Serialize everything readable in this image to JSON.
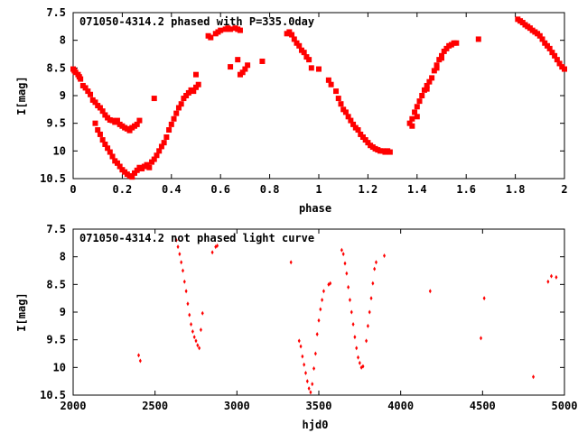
{
  "chart_data": [
    {
      "type": "scatter",
      "title": "071050-4314.2 phased with P=335.0day",
      "xlabel": "phase",
      "ylabel": "I[mag]",
      "xlim": [
        0,
        2
      ],
      "ylim": [
        10.5,
        7.5
      ],
      "y_inverted": true,
      "xticks": [
        0,
        0.2,
        0.4,
        0.6,
        0.8,
        1,
        1.2,
        1.4,
        1.6,
        1.8,
        2
      ],
      "xtick_labels": [
        "0",
        "0.2",
        "0.4",
        "0.6",
        "0.8",
        "1",
        "1.2",
        "1.4",
        "1.6",
        "1.8",
        "2"
      ],
      "yticks": [
        7.5,
        8,
        8.5,
        9,
        9.5,
        10,
        10.5
      ],
      "ytick_labels": [
        "7.5",
        "8",
        "8.5",
        "9",
        "9.5",
        "10",
        "10.5"
      ],
      "grid": false,
      "marker_color": "#ff0000",
      "marker": "filled-square",
      "points": [
        [
          0.0,
          8.52
        ],
        [
          0.005,
          8.55
        ],
        [
          0.01,
          8.58
        ],
        [
          0.02,
          8.62
        ],
        [
          0.025,
          8.66
        ],
        [
          0.03,
          8.7
        ],
        [
          0.04,
          8.82
        ],
        [
          0.05,
          8.86
        ],
        [
          0.06,
          8.92
        ],
        [
          0.07,
          8.98
        ],
        [
          0.08,
          9.08
        ],
        [
          0.09,
          9.12
        ],
        [
          0.1,
          9.18
        ],
        [
          0.11,
          9.22
        ],
        [
          0.12,
          9.28
        ],
        [
          0.13,
          9.35
        ],
        [
          0.14,
          9.4
        ],
        [
          0.15,
          9.44
        ],
        [
          0.16,
          9.45
        ],
        [
          0.17,
          9.48
        ],
        [
          0.18,
          9.45
        ],
        [
          0.19,
          9.52
        ],
        [
          0.2,
          9.55
        ],
        [
          0.21,
          9.58
        ],
        [
          0.22,
          9.6
        ],
        [
          0.23,
          9.63
        ],
        [
          0.24,
          9.58
        ],
        [
          0.25,
          9.55
        ],
        [
          0.26,
          9.52
        ],
        [
          0.27,
          9.45
        ],
        [
          0.09,
          9.5
        ],
        [
          0.1,
          9.62
        ],
        [
          0.11,
          9.7
        ],
        [
          0.12,
          9.8
        ],
        [
          0.13,
          9.88
        ],
        [
          0.14,
          9.95
        ],
        [
          0.15,
          10.02
        ],
        [
          0.16,
          10.1
        ],
        [
          0.17,
          10.18
        ],
        [
          0.18,
          10.22
        ],
        [
          0.19,
          10.28
        ],
        [
          0.2,
          10.34
        ],
        [
          0.21,
          10.38
        ],
        [
          0.22,
          10.42
        ],
        [
          0.23,
          10.45
        ],
        [
          0.24,
          10.47
        ],
        [
          0.25,
          10.4
        ],
        [
          0.26,
          10.35
        ],
        [
          0.27,
          10.3
        ],
        [
          0.28,
          10.32
        ],
        [
          0.29,
          10.28
        ],
        [
          0.3,
          10.25
        ],
        [
          0.31,
          10.3
        ],
        [
          0.32,
          10.2
        ],
        [
          0.33,
          10.15
        ],
        [
          0.34,
          10.08
        ],
        [
          0.35,
          10.0
        ],
        [
          0.36,
          9.92
        ],
        [
          0.37,
          9.85
        ],
        [
          0.38,
          9.75
        ],
        [
          0.39,
          9.62
        ],
        [
          0.4,
          9.52
        ],
        [
          0.41,
          9.42
        ],
        [
          0.42,
          9.32
        ],
        [
          0.43,
          9.22
        ],
        [
          0.44,
          9.15
        ],
        [
          0.45,
          9.05
        ],
        [
          0.46,
          9.0
        ],
        [
          0.47,
          8.95
        ],
        [
          0.48,
          8.9
        ],
        [
          0.49,
          8.92
        ],
        [
          0.5,
          8.85
        ],
        [
          0.51,
          8.8
        ],
        [
          0.33,
          9.05
        ],
        [
          0.5,
          8.62
        ],
        [
          0.55,
          7.92
        ],
        [
          0.56,
          7.95
        ],
        [
          0.58,
          7.88
        ],
        [
          0.59,
          7.85
        ],
        [
          0.6,
          7.82
        ],
        [
          0.62,
          7.8
        ],
        [
          0.63,
          7.78
        ],
        [
          0.64,
          7.8
        ],
        [
          0.66,
          7.78
        ],
        [
          0.67,
          7.8
        ],
        [
          0.68,
          7.82
        ],
        [
          0.64,
          8.48
        ],
        [
          0.67,
          8.35
        ],
        [
          0.68,
          8.62
        ],
        [
          0.69,
          8.58
        ],
        [
          0.7,
          8.52
        ],
        [
          0.71,
          8.45
        ],
        [
          0.77,
          8.38
        ],
        [
          0.87,
          7.88
        ],
        [
          0.88,
          7.85
        ],
        [
          0.89,
          7.9
        ],
        [
          0.9,
          7.98
        ],
        [
          0.91,
          8.05
        ],
        [
          0.92,
          8.1
        ],
        [
          0.93,
          8.18
        ],
        [
          0.94,
          8.22
        ],
        [
          0.95,
          8.3
        ],
        [
          0.96,
          8.35
        ],
        [
          0.97,
          8.5
        ],
        [
          1.0,
          8.52
        ],
        [
          1.04,
          8.72
        ],
        [
          1.05,
          8.8
        ],
        [
          1.07,
          8.92
        ],
        [
          1.08,
          9.05
        ],
        [
          1.09,
          9.15
        ],
        [
          1.1,
          9.25
        ],
        [
          1.11,
          9.3
        ],
        [
          1.12,
          9.38
        ],
        [
          1.13,
          9.45
        ],
        [
          1.14,
          9.52
        ],
        [
          1.15,
          9.58
        ],
        [
          1.16,
          9.62
        ],
        [
          1.17,
          9.7
        ],
        [
          1.18,
          9.75
        ],
        [
          1.19,
          9.8
        ],
        [
          1.2,
          9.85
        ],
        [
          1.21,
          9.9
        ],
        [
          1.22,
          9.93
        ],
        [
          1.23,
          9.96
        ],
        [
          1.24,
          9.98
        ],
        [
          1.25,
          10.0
        ],
        [
          1.26,
          10.0
        ],
        [
          1.27,
          10.02
        ],
        [
          1.28,
          10.0
        ],
        [
          1.29,
          10.02
        ],
        [
          1.37,
          9.5
        ],
        [
          1.38,
          9.42
        ],
        [
          1.39,
          9.3
        ],
        [
          1.4,
          9.2
        ],
        [
          1.41,
          9.1
        ],
        [
          1.42,
          9.0
        ],
        [
          1.43,
          8.9
        ],
        [
          1.44,
          8.82
        ],
        [
          1.45,
          8.75
        ],
        [
          1.46,
          8.68
        ],
        [
          1.47,
          8.55
        ],
        [
          1.48,
          8.45
        ],
        [
          1.49,
          8.35
        ],
        [
          1.5,
          8.28
        ],
        [
          1.51,
          8.2
        ],
        [
          1.52,
          8.15
        ],
        [
          1.53,
          8.1
        ],
        [
          1.54,
          8.08
        ],
        [
          1.55,
          8.05
        ],
        [
          1.56,
          8.05
        ],
        [
          1.38,
          9.55
        ],
        [
          1.4,
          9.38
        ],
        [
          1.44,
          8.88
        ],
        [
          1.48,
          8.5
        ],
        [
          1.5,
          8.32
        ],
        [
          1.65,
          7.98
        ],
        [
          1.81,
          7.62
        ],
        [
          1.82,
          7.65
        ],
        [
          1.83,
          7.68
        ],
        [
          1.84,
          7.72
        ],
        [
          1.85,
          7.75
        ],
        [
          1.86,
          7.78
        ],
        [
          1.87,
          7.82
        ],
        [
          1.88,
          7.85
        ],
        [
          1.89,
          7.88
        ],
        [
          1.9,
          7.92
        ],
        [
          1.91,
          7.98
        ],
        [
          1.92,
          8.05
        ],
        [
          1.93,
          8.1
        ],
        [
          1.94,
          8.15
        ],
        [
          1.95,
          8.22
        ],
        [
          1.96,
          8.28
        ],
        [
          1.97,
          8.35
        ],
        [
          1.98,
          8.42
        ],
        [
          1.99,
          8.48
        ],
        [
          2.0,
          8.52
        ]
      ]
    },
    {
      "type": "scatter",
      "title": "071050-4314.2 not phased light curve",
      "xlabel": "hjd0",
      "ylabel": "I[mag]",
      "xlim": [
        2000,
        5000
      ],
      "ylim": [
        10.5,
        7.5
      ],
      "y_inverted": true,
      "xticks": [
        2000,
        2500,
        3000,
        3500,
        4000,
        4500,
        5000
      ],
      "xtick_labels": [
        "2000",
        "2500",
        "3000",
        "3500",
        "4000",
        "4500",
        "5000"
      ],
      "yticks": [
        7.5,
        8,
        8.5,
        9,
        9.5,
        10,
        10.5
      ],
      "ytick_labels": [
        "7.5",
        "8",
        "8.5",
        "9",
        "9.5",
        "10",
        "10.5"
      ],
      "grid": false,
      "marker_color": "#ff0000",
      "marker": "filled-diamond",
      "points": [
        [
          2400,
          9.78
        ],
        [
          2410,
          9.88
        ],
        [
          2630,
          7.7
        ],
        [
          2640,
          7.82
        ],
        [
          2650,
          7.95
        ],
        [
          2660,
          8.1
        ],
        [
          2670,
          8.25
        ],
        [
          2680,
          8.45
        ],
        [
          2690,
          8.62
        ],
        [
          2700,
          8.85
        ],
        [
          2710,
          9.05
        ],
        [
          2720,
          9.22
        ],
        [
          2730,
          9.35
        ],
        [
          2740,
          9.45
        ],
        [
          2750,
          9.52
        ],
        [
          2760,
          9.6
        ],
        [
          2770,
          9.65
        ],
        [
          2780,
          9.32
        ],
        [
          2790,
          9.02
        ],
        [
          2850,
          7.92
        ],
        [
          2870,
          7.82
        ],
        [
          2880,
          7.8
        ],
        [
          3330,
          8.1
        ],
        [
          3380,
          9.52
        ],
        [
          3390,
          9.62
        ],
        [
          3400,
          9.8
        ],
        [
          3410,
          9.95
        ],
        [
          3420,
          10.1
        ],
        [
          3430,
          10.25
        ],
        [
          3440,
          10.38
        ],
        [
          3450,
          10.45
        ],
        [
          3460,
          10.3
        ],
        [
          3470,
          10.02
        ],
        [
          3480,
          9.75
        ],
        [
          3490,
          9.4
        ],
        [
          3500,
          9.15
        ],
        [
          3510,
          8.95
        ],
        [
          3520,
          8.78
        ],
        [
          3530,
          8.62
        ],
        [
          3560,
          8.5
        ],
        [
          3570,
          8.48
        ],
        [
          3640,
          7.88
        ],
        [
          3650,
          7.95
        ],
        [
          3660,
          8.12
        ],
        [
          3670,
          8.3
        ],
        [
          3680,
          8.55
        ],
        [
          3690,
          8.78
        ],
        [
          3700,
          9.0
        ],
        [
          3710,
          9.22
        ],
        [
          3720,
          9.45
        ],
        [
          3730,
          9.65
        ],
        [
          3740,
          9.82
        ],
        [
          3750,
          9.92
        ],
        [
          3760,
          10.0
        ],
        [
          3770,
          9.98
        ],
        [
          3790,
          9.52
        ],
        [
          3800,
          9.25
        ],
        [
          3810,
          9.0
        ],
        [
          3820,
          8.75
        ],
        [
          3830,
          8.48
        ],
        [
          3840,
          8.22
        ],
        [
          3850,
          8.1
        ],
        [
          3900,
          7.98
        ],
        [
          4180,
          8.62
        ],
        [
          4490,
          9.47
        ],
        [
          4510,
          8.75
        ],
        [
          4810,
          10.17
        ],
        [
          4900,
          8.45
        ],
        [
          4920,
          8.35
        ],
        [
          4950,
          8.37
        ]
      ]
    }
  ]
}
